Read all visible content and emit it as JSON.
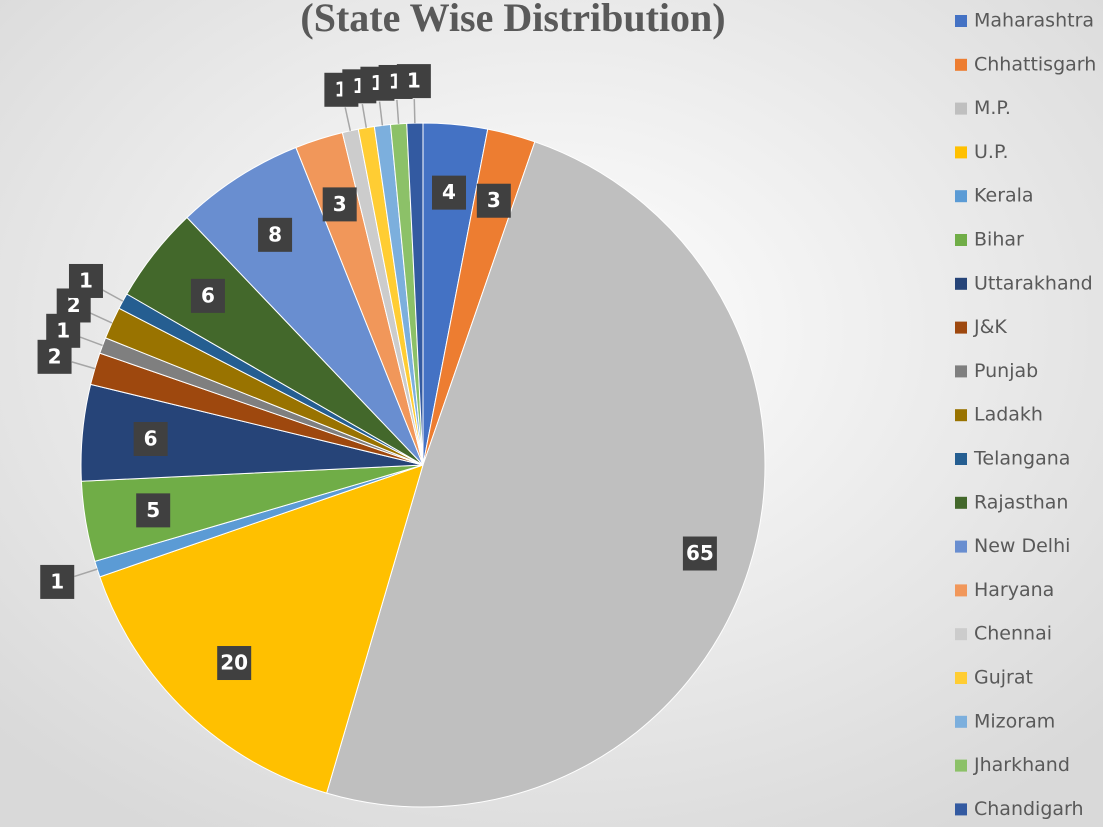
{
  "chart_data": {
    "type": "pie",
    "title": "(State Wise Distribution)",
    "categories": [
      "Maharashtra",
      "Chhattisgarh",
      "M.P.",
      "U.P.",
      "Kerala",
      "Bihar",
      "Uttarakhand",
      "J&K",
      "Punjab",
      "Ladakh",
      "Telangana",
      "Rajasthan",
      "New Delhi",
      "Haryana",
      "Chennai",
      "Gujrat",
      "Mizoram",
      "Jharkhand",
      "Chandigarh"
    ],
    "values": [
      4,
      3,
      65,
      20,
      1,
      5,
      6,
      2,
      1,
      2,
      1,
      6,
      8,
      3,
      1,
      1,
      1,
      1,
      1
    ],
    "colors": [
      "#4472c4",
      "#ed7d31",
      "#bfbfbf",
      "#ffc000",
      "#5b9bd5",
      "#70ad47",
      "#264478",
      "#9e480e",
      "#7f7f7f",
      "#997300",
      "#255e91",
      "#43682b",
      "#698ed0",
      "#f1975a",
      "#cccccc",
      "#ffcd33",
      "#7cafdd",
      "#8cc168",
      "#335aa1"
    ],
    "legend": "right"
  }
}
